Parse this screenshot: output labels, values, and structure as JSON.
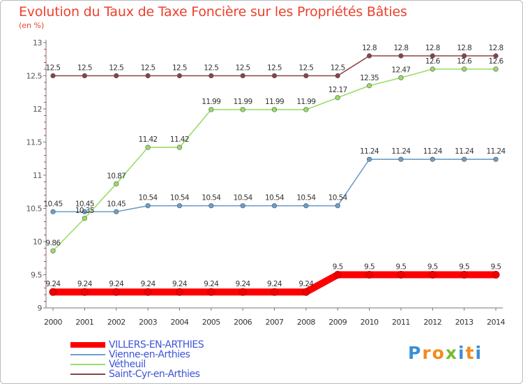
{
  "title": "Evolution du Taux de Taxe Foncière sur les Propriétés Bâties",
  "unit": "(en %)",
  "logo": "Proxiti",
  "chart_data": {
    "type": "line",
    "title": "Evolution du Taux de Taxe Foncière sur les Propriétés Bâties",
    "ylabel": "(en %)",
    "xlabel": "",
    "ylim": [
      9,
      13
    ],
    "yticks": [
      "9",
      "9.5",
      "10",
      "10.5",
      "11",
      "11.5",
      "12",
      "12.5",
      "13"
    ],
    "categories": [
      "2000",
      "2001",
      "2002",
      "2003",
      "2004",
      "2005",
      "2006",
      "2007",
      "2008",
      "2009",
      "2010",
      "2011",
      "2012",
      "2013",
      "2014"
    ],
    "series": [
      {
        "name": "VILLERS-EN-ARTHIES",
        "color": "#ff0000",
        "values": [
          9.24,
          9.24,
          9.24,
          9.24,
          9.24,
          9.24,
          9.24,
          9.24,
          9.24,
          9.5,
          9.5,
          9.5,
          9.5,
          9.5,
          9.5
        ],
        "labels": [
          "9.24",
          "9.24",
          "9.24",
          "9.24",
          "9.24",
          "9.24",
          "9.24",
          "9.24",
          "9.24",
          "9.5",
          "9.5",
          "9.5",
          "9.5",
          "9.5",
          "9.5"
        ]
      },
      {
        "name": "Vienne-en-Arthies",
        "color": "#6a9fcc",
        "values": [
          10.45,
          10.45,
          10.45,
          10.54,
          10.54,
          10.54,
          10.54,
          10.54,
          10.54,
          10.54,
          11.24,
          11.24,
          11.24,
          11.24,
          11.24
        ],
        "labels": [
          "10.45",
          "10.45",
          "10.45",
          "10.54",
          "10.54",
          "10.54",
          "10.54",
          "10.54",
          "10.54",
          "10.54",
          "11.24",
          "11.24",
          "11.24",
          "11.24",
          "11.24"
        ]
      },
      {
        "name": "Vétheuil",
        "color": "#99dd66",
        "values": [
          9.86,
          10.35,
          10.87,
          11.42,
          11.42,
          11.99,
          11.99,
          11.99,
          11.99,
          12.17,
          12.35,
          12.47,
          12.6,
          12.6,
          12.6
        ],
        "labels": [
          "9.86",
          "10.35",
          "10.87",
          "11.42",
          "11.42",
          "11.99",
          "11.99",
          "11.99",
          "11.99",
          "12.17",
          "12.35",
          "12.47",
          "12.6",
          "12.6",
          "12.6"
        ]
      },
      {
        "name": "Saint-Cyr-en-Arthies",
        "color": "#884444",
        "values": [
          12.5,
          12.5,
          12.5,
          12.5,
          12.5,
          12.5,
          12.5,
          12.5,
          12.5,
          12.5,
          12.8,
          12.8,
          12.8,
          12.8,
          12.8
        ],
        "labels": [
          "12.5",
          "12.5",
          "12.5",
          "12.5",
          "12.5",
          "12.5",
          "12.5",
          "12.5",
          "12.5",
          "12.5",
          "12.8",
          "12.8",
          "12.8",
          "12.8",
          "12.8"
        ]
      }
    ],
    "legend_position": "bottom-left",
    "grid": false
  }
}
